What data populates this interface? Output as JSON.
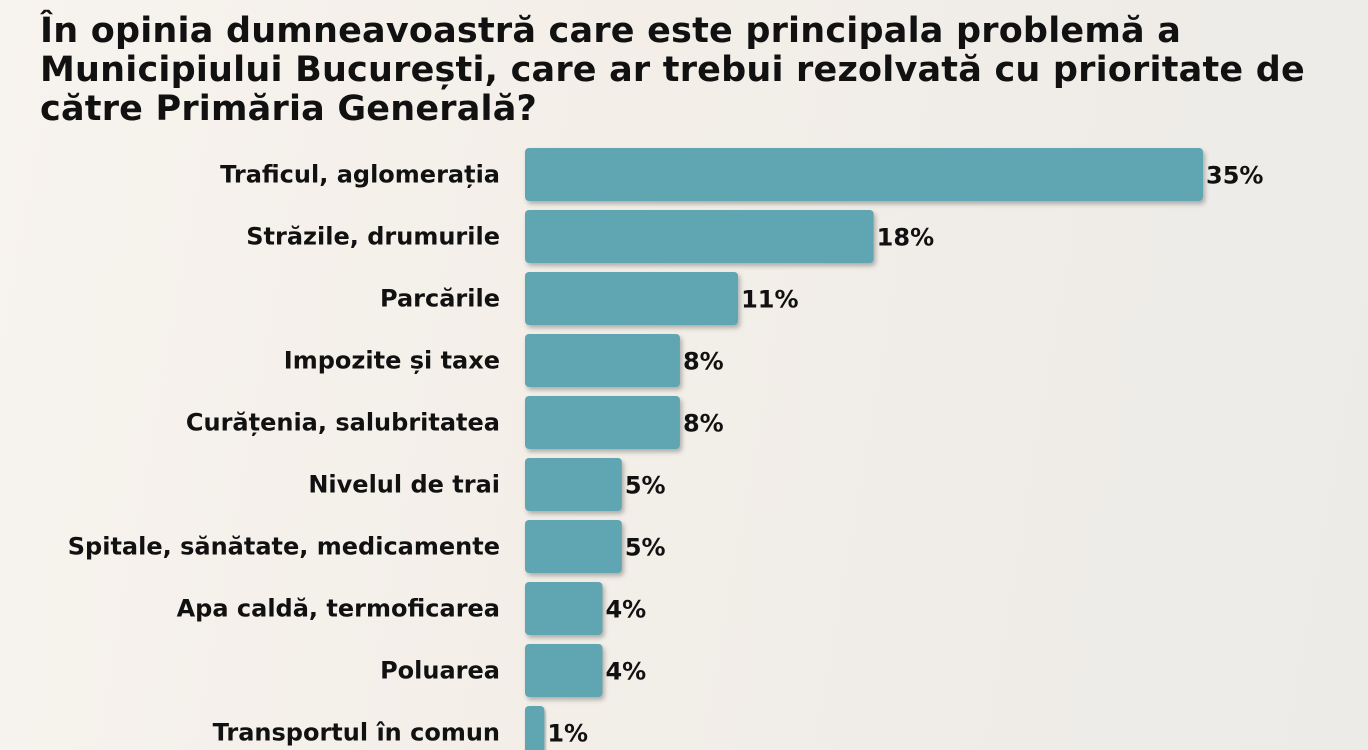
{
  "chart_data": {
    "type": "bar",
    "orientation": "horizontal",
    "title": "În opinia dumneavoastră care este principala problemă a Municipiului București, care ar trebui rezolvată cu prioritate de către Primăria Generală?",
    "categories": [
      "Traficul, aglomerația",
      "Străzile, drumurile",
      "Parcările",
      "Impozite și taxe",
      "Curățenia, salubritatea",
      "Nivelul de trai",
      "Spitale, sănătate, medicamente",
      "Apa caldă, termoficarea",
      "Poluarea",
      "Transportul în comun"
    ],
    "values": [
      35,
      18,
      11,
      8,
      8,
      5,
      5,
      4,
      4,
      1
    ],
    "value_labels": [
      "35%",
      "18%",
      "11%",
      "8%",
      "8%",
      "5%",
      "5%",
      "4%",
      "4%",
      "1%"
    ],
    "unit": "%",
    "bar_color": "#5ea6b2",
    "grid": false,
    "legend": "none"
  }
}
